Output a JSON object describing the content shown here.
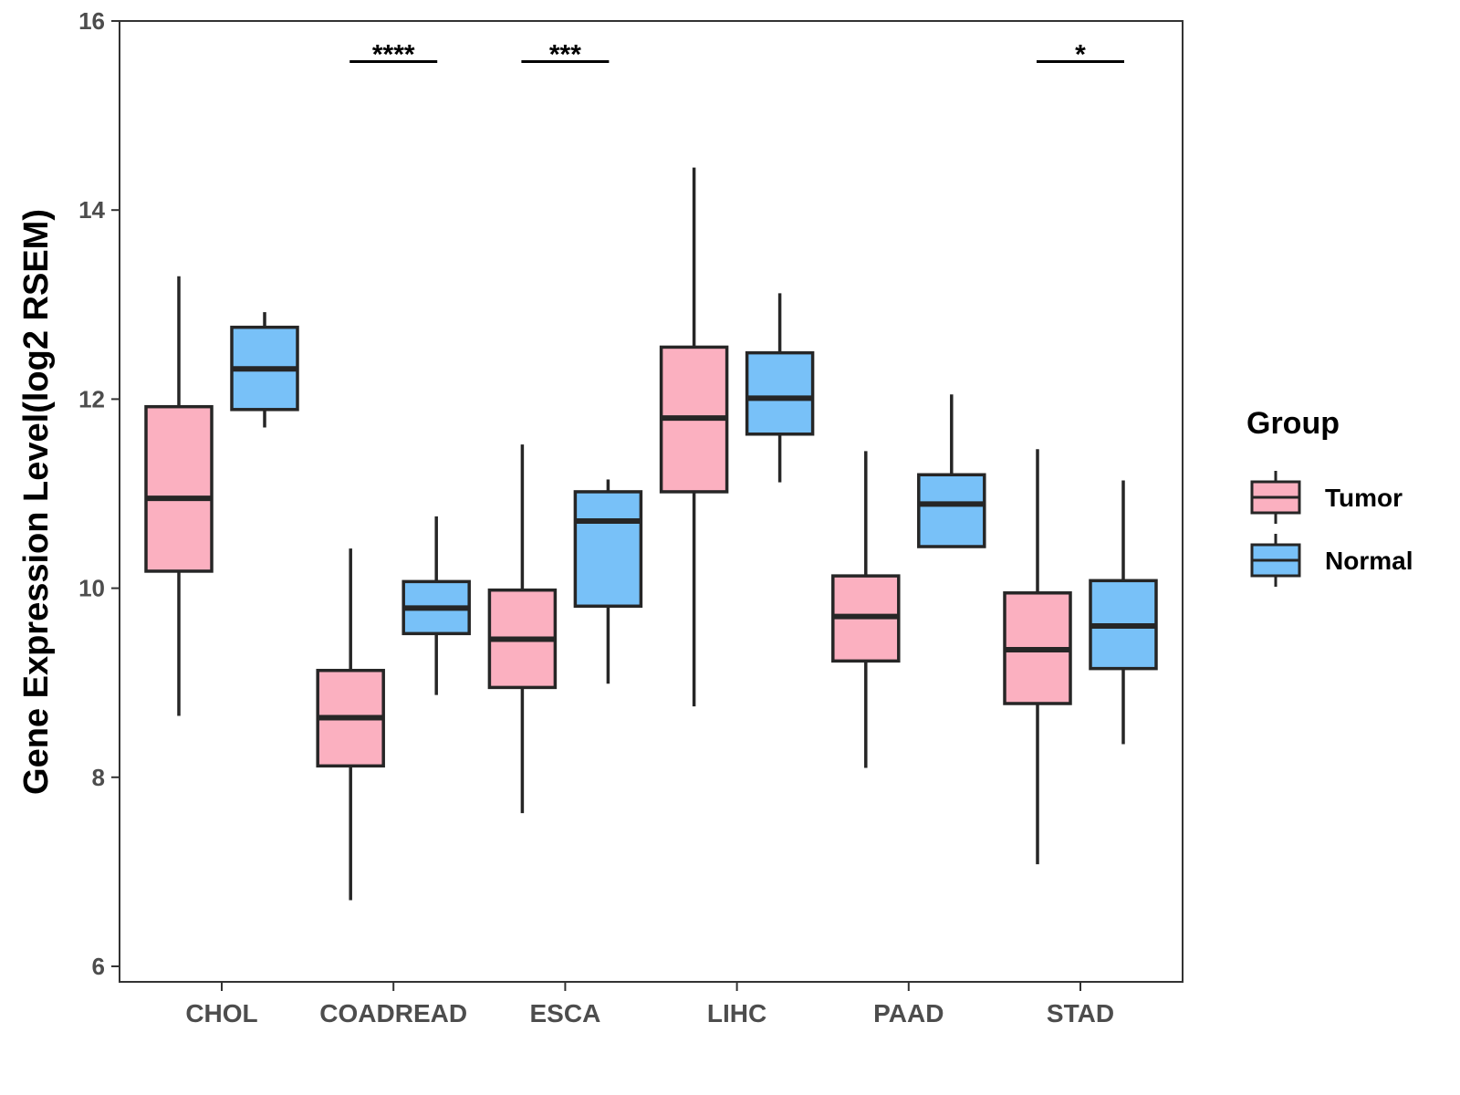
{
  "chart_data": {
    "type": "boxplot",
    "title": "",
    "xlabel": "",
    "ylabel": "Gene Expression Level(log2 RSEM)",
    "ylim": [
      5.8,
      16.2
    ],
    "yticks": [
      6,
      8,
      10,
      12,
      14,
      16
    ],
    "grid": false,
    "legend_position": "right",
    "legend_title": "Group",
    "categories": [
      "CHOL",
      "COADREAD",
      "ESCA",
      "LIHC",
      "PAAD",
      "STAD"
    ],
    "series": [
      {
        "name": "Tumor",
        "color": "#FBB0C0",
        "boxes": [
          {
            "whisker_low": 8.65,
            "q1": 10.18,
            "median": 10.95,
            "q3": 11.92,
            "whisker_high": 13.3
          },
          {
            "whisker_low": 6.7,
            "q1": 8.12,
            "median": 8.63,
            "q3": 9.13,
            "whisker_high": 10.42
          },
          {
            "whisker_low": 7.62,
            "q1": 8.95,
            "median": 9.46,
            "q3": 9.98,
            "whisker_high": 11.52
          },
          {
            "whisker_low": 8.75,
            "q1": 11.02,
            "median": 11.8,
            "q3": 12.55,
            "whisker_high": 14.45
          },
          {
            "whisker_low": 8.1,
            "q1": 9.23,
            "median": 9.7,
            "q3": 10.13,
            "whisker_high": 11.45
          },
          {
            "whisker_low": 7.08,
            "q1": 8.78,
            "median": 9.35,
            "q3": 9.95,
            "whisker_high": 11.47
          }
        ]
      },
      {
        "name": "Normal",
        "color": "#78C1F8",
        "boxes": [
          {
            "whisker_low": 11.7,
            "q1": 11.89,
            "median": 12.32,
            "q3": 12.76,
            "whisker_high": 12.92
          },
          {
            "whisker_low": 8.87,
            "q1": 9.52,
            "median": 9.79,
            "q3": 10.07,
            "whisker_high": 10.76
          },
          {
            "whisker_low": 8.99,
            "q1": 9.81,
            "median": 10.71,
            "q3": 11.02,
            "whisker_high": 11.15
          },
          {
            "whisker_low": 11.12,
            "q1": 11.63,
            "median": 12.01,
            "q3": 12.49,
            "whisker_high": 13.12
          },
          {
            "whisker_low": 10.44,
            "q1": 10.44,
            "median": 10.89,
            "q3": 11.2,
            "whisker_high": 12.05
          },
          {
            "whisker_low": 8.35,
            "q1": 9.15,
            "median": 9.6,
            "q3": 10.08,
            "whisker_high": 11.14
          }
        ]
      }
    ],
    "significance": [
      {
        "category": "COADREAD",
        "label": "****"
      },
      {
        "category": "ESCA",
        "label": "***"
      },
      {
        "category": "STAD",
        "label": "*"
      }
    ],
    "significance_level": 15.57
  }
}
